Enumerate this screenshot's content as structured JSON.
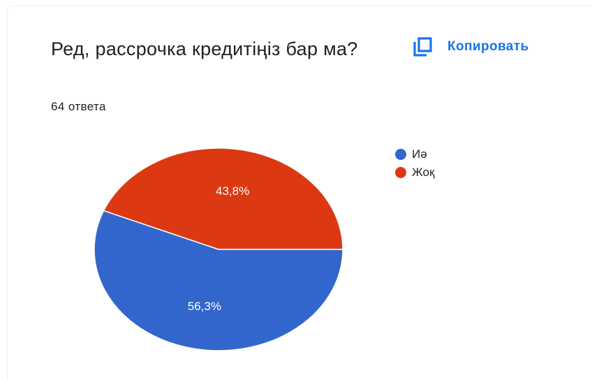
{
  "question": {
    "title": "Ред, рассрочка кредитіңіз бар ма?",
    "responses": "64 ответа"
  },
  "actions": {
    "copy_label": "Копировать",
    "copy_icon": "copy-icon",
    "accent_color": "#1a73e8"
  },
  "chart_data": {
    "type": "pie",
    "title": "",
    "legend_position": "right",
    "slices": [
      {
        "label": "Иә",
        "value": 56.3,
        "display": "56,3%",
        "color": "#3366cc"
      },
      {
        "label": "Жоқ",
        "value": 43.8,
        "display": "43,8%",
        "color": "#dc3912"
      }
    ]
  }
}
